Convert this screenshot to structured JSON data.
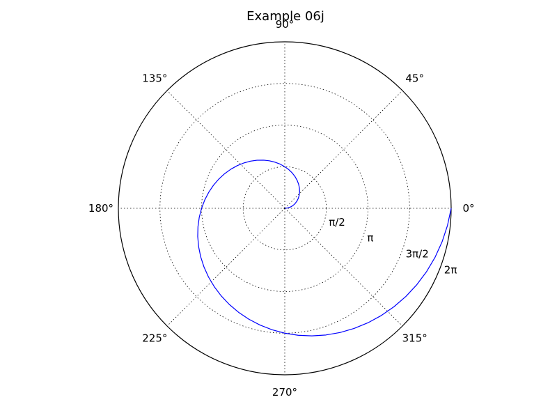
{
  "chart_data": {
    "type": "line",
    "projection": "polar",
    "title": "Example 06j",
    "theta_tick_labels": [
      "0°",
      "45°",
      "90°",
      "135°",
      "180°",
      "225°",
      "270°",
      "315°"
    ],
    "theta_ticks_deg": [
      0,
      45,
      90,
      135,
      180,
      225,
      270,
      315
    ],
    "r_tick_labels": [
      "π/2",
      "π",
      "3π/2",
      "2π"
    ],
    "r_ticks": [
      1.5708,
      3.1416,
      4.7124,
      6.2832
    ],
    "rlim": [
      0,
      6.2832
    ],
    "r_label_angle_deg": -22.5,
    "grid": true,
    "series": [
      {
        "color": "#0000ff",
        "theta_range_rad": [
          0,
          6.2832
        ],
        "r_equals_theta": true,
        "samples": 61
      }
    ]
  }
}
